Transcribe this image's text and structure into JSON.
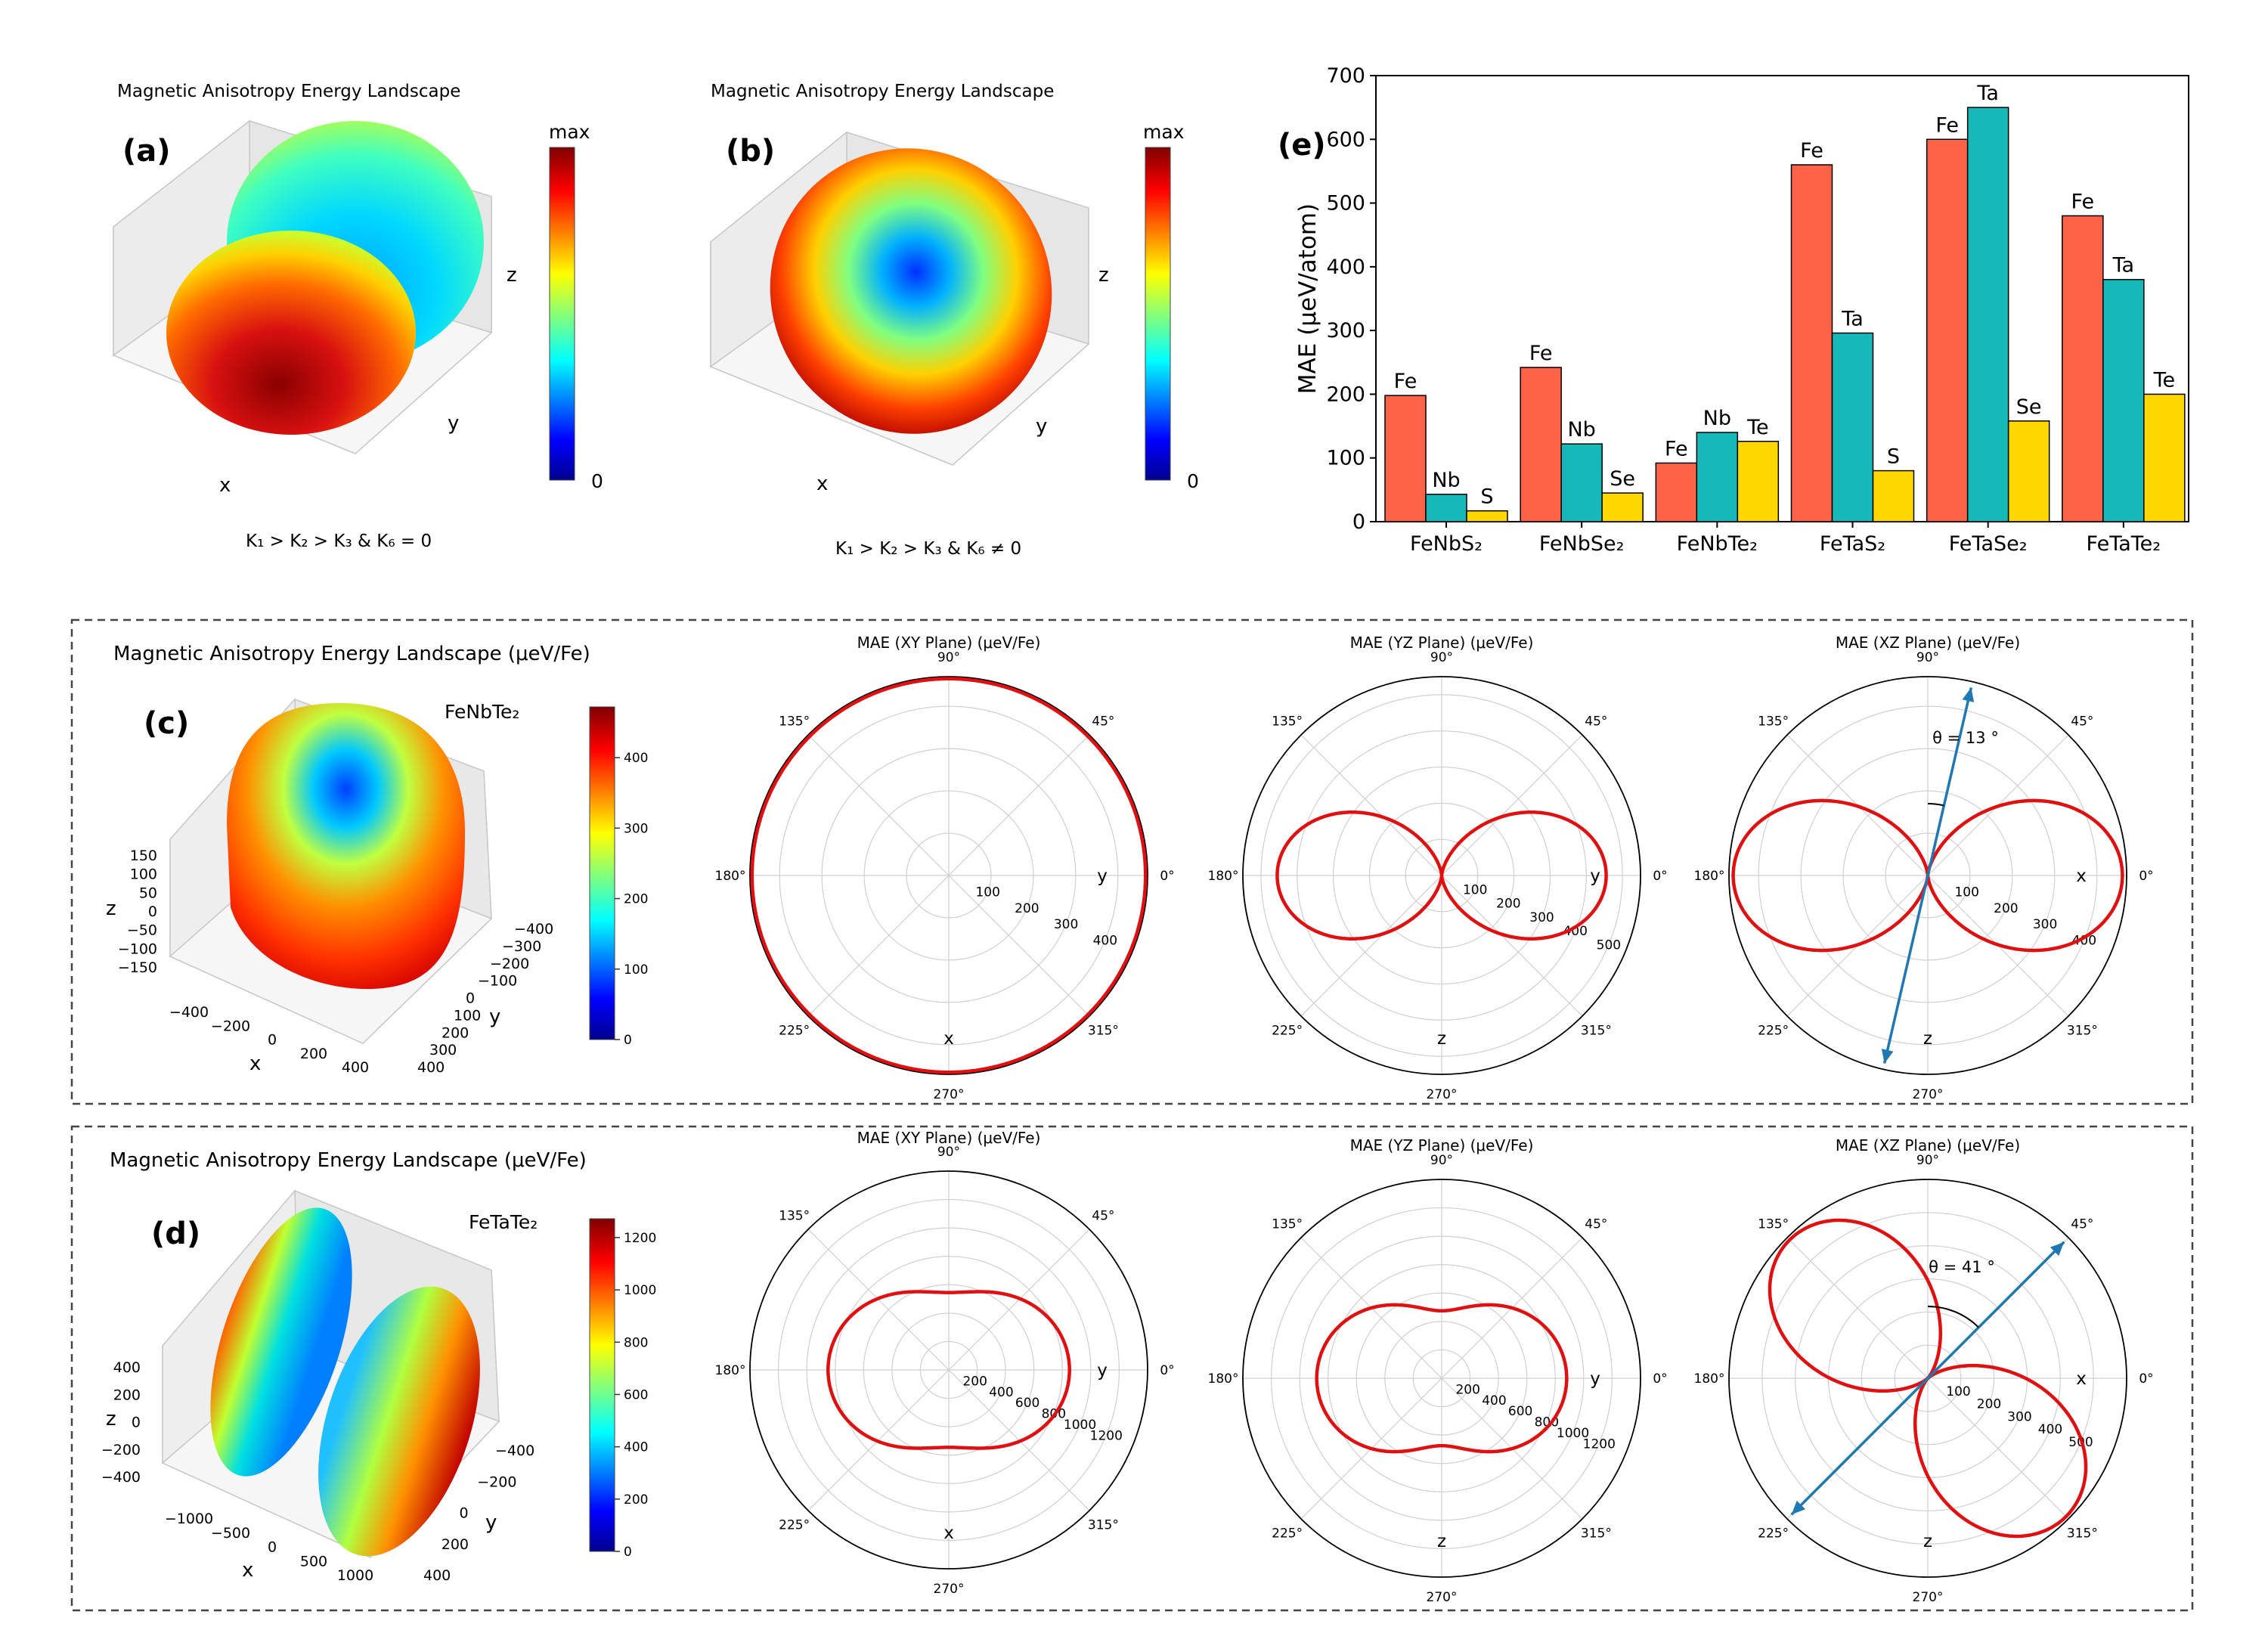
{
  "panels": {
    "a": {
      "label": "(a)",
      "title": "Magnetic Anisotropy Energy Landscape",
      "caption": "K₁ > K₂ > K₃ & K₆ = 0",
      "cbar_max": "max",
      "cbar_min": "0",
      "axes": {
        "x": "x",
        "y": "y",
        "z": "z"
      }
    },
    "b": {
      "label": "(b)",
      "title": "Magnetic Anisotropy Energy Landscape",
      "caption": "K₁ > K₂ > K₃ & K₆ ≠ 0",
      "cbar_max": "max",
      "cbar_min": "0",
      "axes": {
        "x": "x",
        "y": "y",
        "z": "z"
      }
    },
    "c": {
      "label": "(c)",
      "title": "Magnetic Anisotropy Energy Landscape (μeV/Fe)",
      "material": "FeNbTe₂",
      "cbar_ticks": [
        "0",
        "100",
        "200",
        "300",
        "400"
      ],
      "z_ticks": [
        "150",
        "100",
        "50",
        "0",
        "−50",
        "−100",
        "−150"
      ],
      "x_ticks": [
        "−400",
        "−200",
        "0",
        "200",
        "400"
      ],
      "y_ticks": [
        "−400",
        "−300",
        "−200",
        "−100",
        "0",
        "100",
        "200",
        "300",
        "400"
      ],
      "axes": {
        "x": "x",
        "y": "y",
        "z": "z"
      }
    },
    "d": {
      "label": "(d)",
      "title": "Magnetic Anisotropy Energy Landscape (μeV/Fe)",
      "material": "FeTaTe₂",
      "cbar_ticks": [
        "0",
        "200",
        "400",
        "600",
        "800",
        "1000",
        "1200"
      ],
      "z_ticks": [
        "400",
        "200",
        "0",
        "−200",
        "−400"
      ],
      "x_ticks": [
        "−1000",
        "−500",
        "0",
        "500",
        "1000"
      ],
      "y_ticks": [
        "−400",
        "−200",
        "0",
        "200",
        "400"
      ],
      "axes": {
        "x": "x",
        "y": "y",
        "z": "z"
      }
    }
  },
  "colors": {
    "bar_fe": "#ff6347",
    "bar_nb_ta": "#17b8b8",
    "bar_chalcogen": "#ffd700",
    "polar_curve": "#e01010",
    "arrow": "#1f77b4"
  },
  "chart_data": [
    {
      "type": "bar",
      "panel": "(e)",
      "ylabel": "MAE (μeV/atom)",
      "ylim": [
        0,
        700
      ],
      "yticks": [
        0,
        100,
        200,
        300,
        400,
        500,
        600,
        700
      ],
      "categories": [
        "FeNbS₂",
        "FeNbSe₂",
        "FeNbTe₂",
        "FeTaS₂",
        "FeTaSe₂",
        "FeTaTe₂"
      ],
      "series": [
        {
          "values": [
            198,
            242,
            92,
            560,
            600,
            480
          ],
          "labels": [
            "Fe",
            "Fe",
            "Fe",
            "Fe",
            "Fe",
            "Fe"
          ]
        },
        {
          "values": [
            43,
            122,
            140,
            296,
            650,
            380
          ],
          "labels": [
            "Nb",
            "Nb",
            "Nb",
            "Ta",
            "Ta",
            "Ta"
          ]
        },
        {
          "values": [
            17,
            45,
            126,
            80,
            158,
            200
          ],
          "labels": [
            "S",
            "Se",
            "Te",
            "S",
            "Se",
            "Te"
          ]
        }
      ]
    },
    {
      "type": "polar",
      "panel": "c-xy",
      "title": "MAE (XY Plane) (μeV/Fe)",
      "rmax": 470,
      "rticks": [
        100,
        200,
        300,
        400
      ],
      "shape": "circle",
      "a": 465,
      "b": 0,
      "labels": [
        "x",
        "y"
      ]
    },
    {
      "type": "polar",
      "panel": "c-yz",
      "title": "MAE (YZ Plane) (μeV/Fe)",
      "rmax": 550,
      "rticks": [
        100,
        200,
        300,
        400,
        500
      ],
      "shape": "cos2",
      "a": 455,
      "b": 0,
      "c": 0,
      "phase_deg": 0,
      "labels": [
        "z",
        "y"
      ]
    },
    {
      "type": "polar",
      "panel": "c-xz",
      "title": "MAE (XZ Plane) (μeV/Fe)",
      "rmax": 470,
      "rticks": [
        100,
        200,
        300,
        400
      ],
      "shape": "cos2",
      "a": 460,
      "b": 0,
      "c": 0,
      "phase_deg": 0,
      "labels": [
        "z",
        "x"
      ],
      "arrow_deg": 77,
      "theta_label": "θ = 13 °"
    },
    {
      "type": "polar",
      "panel": "d-xy",
      "title": "MAE (XY Plane) (μeV/Fe)",
      "rmax": 1400,
      "rticks": [
        200,
        400,
        600,
        800,
        1000,
        1200
      ],
      "shape": "cos2",
      "a": 850,
      "b": 590,
      "c": 45,
      "phase_deg": 0,
      "labels": [
        "x",
        "y"
      ]
    },
    {
      "type": "polar",
      "panel": "d-yz",
      "title": "MAE (YZ Plane) (μeV/Fe)",
      "rmax": 1400,
      "rticks": [
        200,
        400,
        600,
        800,
        1000,
        1200
      ],
      "shape": "cos2",
      "a": 880,
      "b": 520,
      "c": 45,
      "phase_deg": 0,
      "labels": [
        "z",
        "y"
      ]
    },
    {
      "type": "polar",
      "panel": "d-xz",
      "title": "MAE (XZ Plane) (μeV/Fe)",
      "rmax": 600,
      "rticks": [
        100,
        200,
        300,
        400,
        500
      ],
      "shape": "cos2",
      "a": 590,
      "b": 0,
      "c": 0,
      "phase_deg": -45,
      "labels": [
        "z",
        "x"
      ],
      "arrow_deg": 45,
      "theta_label": "θ = 41 °"
    }
  ],
  "angle_labels": [
    "0°",
    "45°",
    "90°",
    "135°",
    "180°",
    "225°",
    "270°",
    "315°"
  ]
}
